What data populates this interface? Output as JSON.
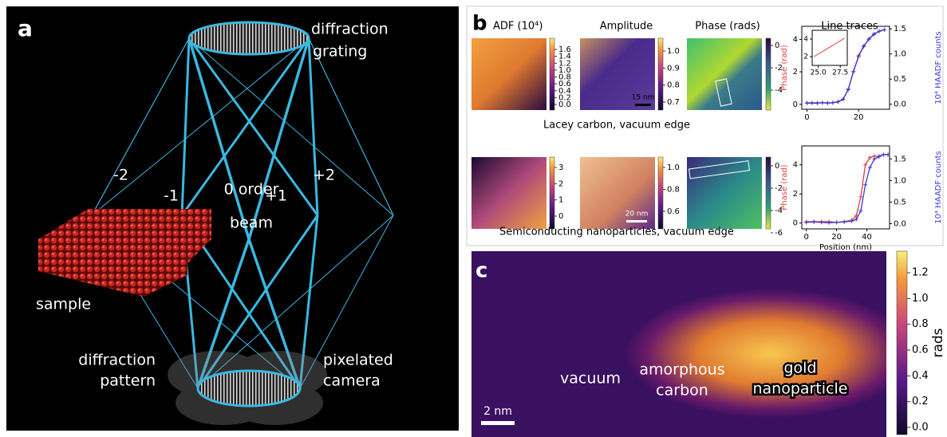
{
  "panel_a": {
    "label": "a",
    "grating": [
      "diffraction",
      "grating"
    ],
    "orders": [
      "-2",
      "-1",
      "+1",
      "+2"
    ],
    "zero_order": [
      "0 order",
      "beam"
    ],
    "sample": "sample",
    "pattern": [
      "diffraction",
      "pattern"
    ],
    "camera": [
      "pixelated",
      "camera"
    ]
  },
  "panel_b": {
    "label": "b",
    "columns": [
      "ADF  (10⁴)",
      "Amplitude",
      "Phase  (rads)",
      "Line traces"
    ],
    "rows": [
      {
        "caption": "Lacey carbon, vacuum edge",
        "scale_bar": "15 nm",
        "colorbars": [
          [
            "1.6",
            "1.4",
            "1.2",
            "1.0",
            "0.8",
            "0.6",
            "0.4",
            "0.2",
            "0.0"
          ],
          [
            "1.0",
            "0.9",
            "0.8",
            "0.7"
          ],
          [
            "0",
            "-2",
            "-4"
          ]
        ],
        "trace": {
          "ylabel": "Phase (rad)",
          "y2label": "10⁴ HAADF counts",
          "xlim": [
            -2,
            32
          ],
          "ylim": [
            -0.3,
            4.8
          ],
          "y2lim": [
            -0.1,
            1.55
          ],
          "xticks": [
            0,
            20
          ],
          "yticks": [
            0,
            2,
            4
          ],
          "y2ticks": [
            {
              "value": 0,
              "label": "0.0"
            },
            {
              "value": 0.5,
              "label": "0.5"
            },
            {
              "value": 1,
              "label": "1.0"
            },
            {
              "value": 1.5,
              "label": "1.5"
            }
          ],
          "x": [
            0,
            2,
            4,
            6,
            8,
            10,
            12,
            14,
            16,
            18,
            20,
            22,
            24,
            26,
            28,
            30
          ],
          "series": [
            {
              "color": "#e0403a",
              "values": [
                0.1,
                0.1,
                0.1,
                0.1,
                0.1,
                0.1,
                0.15,
                0.3,
                0.9,
                2.0,
                3.0,
                3.6,
                4.0,
                4.3,
                4.5,
                4.6
              ]
            },
            {
              "color": "#3a3ae0",
              "axis": "y2",
              "values": [
                0.02,
                0.02,
                0.02,
                0.03,
                0.02,
                0.03,
                0.05,
                0.1,
                0.3,
                0.65,
                0.95,
                1.15,
                1.3,
                1.4,
                1.45,
                1.48
              ]
            }
          ],
          "inset": {
            "xlim": [
              24.3,
              28.3
            ],
            "ylim": [
              1,
              5
            ],
            "xticks": [
              {
                "value": 25,
                "label": "25.0"
              },
              {
                "value": 27.5,
                "label": "27.5"
              }
            ],
            "yticks": [
              2,
              4
            ],
            "x": [
              24.5,
              25,
              25.5,
              26,
              26.5,
              27,
              27.5,
              28
            ],
            "values": [
              2.0,
              2.3,
              2.6,
              2.9,
              3.2,
              3.5,
              3.8,
              4.1
            ],
            "color": "#e0403a"
          }
        }
      },
      {
        "caption": "Semiconducting nanoparticles, vacuum edge",
        "scale_bar": "20 nm",
        "colorbars": [
          [
            "3",
            "2",
            "1",
            "0"
          ],
          [
            "1.0",
            "0.8",
            "0.6"
          ],
          [
            "0",
            "-2",
            "-4",
            "-6"
          ]
        ],
        "trace": {
          "ylabel": "Phase (rad)",
          "y2label": "10⁴ HAADF counts",
          "xlabel": "Position (nm)",
          "xlim": [
            -3,
            55
          ],
          "ylim": [
            -0.4,
            5.3
          ],
          "y2lim": [
            -0.12,
            1.8
          ],
          "xticks": [
            0,
            20,
            40
          ],
          "yticks": [
            0,
            2,
            4
          ],
          "y2ticks": [
            {
              "value": 0,
              "label": "0.0"
            },
            {
              "value": 0.5,
              "label": "0.5"
            },
            {
              "value": 1,
              "label": "1.0"
            },
            {
              "value": 1.5,
              "label": "1.5"
            }
          ],
          "x": [
            0,
            5,
            10,
            15,
            20,
            25,
            30,
            33,
            36,
            39,
            42,
            45,
            48,
            51,
            54
          ],
          "series": [
            {
              "color": "#e0403a",
              "values": [
                0.1,
                0.1,
                0.1,
                0.1,
                0.05,
                0.1,
                0.2,
                0.5,
                1.8,
                4.0,
                4.5,
                4.6,
                4.6,
                4.7,
                4.7
              ]
            },
            {
              "color": "#3a3ae0",
              "axis": "y2",
              "values": [
                0.03,
                0.04,
                0.03,
                0.02,
                0.03,
                0.04,
                0.06,
                0.1,
                0.3,
                0.9,
                1.3,
                1.5,
                1.55,
                1.6,
                1.6
              ]
            }
          ]
        }
      }
    ]
  },
  "panel_c": {
    "label": "c",
    "regions": [
      [
        "vacuum"
      ],
      [
        "amorphous",
        "carbon"
      ],
      [
        "gold",
        "nanoparticle"
      ]
    ],
    "scale_bar": "2 nm",
    "colorbar_label": "rads",
    "colorbar": [
      "1.2",
      "1.0",
      "0.8",
      "0.6",
      "0.4",
      "0.2",
      "0.0"
    ]
  }
}
